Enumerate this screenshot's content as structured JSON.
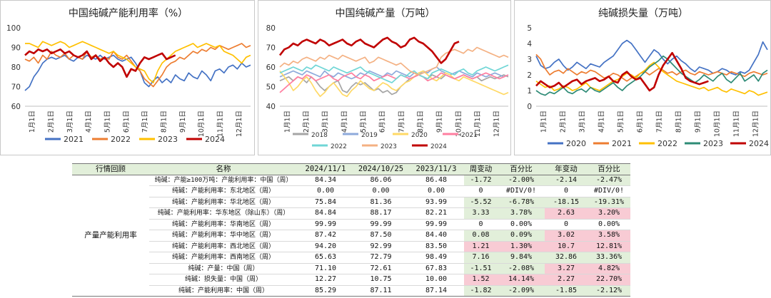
{
  "chart_data": [
    {
      "type": "line",
      "title": "中国纯碱产能利用率（%）",
      "x_tick_labels": [
        "1月1日",
        "2月1日",
        "3月1日",
        "4月1日",
        "5月1日",
        "6月1日",
        "7月1日",
        "8月1日",
        "9月1日",
        "10月1日",
        "11月1日",
        "12月1日"
      ],
      "ylim": [
        60,
        100
      ],
      "yticks": [
        60,
        70,
        80,
        90,
        100
      ],
      "legend_position": "bottom",
      "x_unit": "week",
      "series": [
        {
          "name": "2021",
          "color": "#4472c4",
          "values": [
            68,
            70,
            75,
            78,
            82,
            84,
            85,
            84,
            85,
            86,
            84,
            83,
            85,
            84,
            86,
            85,
            84,
            86,
            84,
            85,
            86,
            84,
            83,
            84,
            85,
            82,
            78,
            72,
            70,
            73,
            75,
            72,
            74,
            72,
            76,
            74,
            73,
            77,
            75,
            74,
            78,
            76,
            73,
            78,
            79,
            77,
            80,
            81,
            79,
            82,
            80,
            81
          ]
        },
        {
          "name": "2022",
          "color": "#ed7d31",
          "values": [
            84,
            83,
            85,
            82,
            86,
            84,
            88,
            86,
            85,
            87,
            84,
            86,
            85,
            84,
            88,
            85,
            86,
            84,
            85,
            84,
            88,
            85,
            84,
            86,
            83,
            80,
            78,
            74,
            72,
            70,
            73,
            76,
            80,
            82,
            83,
            85,
            84,
            86,
            88,
            87,
            89,
            88,
            90,
            89,
            91,
            90,
            89,
            90,
            91,
            92,
            90,
            91
          ]
        },
        {
          "name": "2023",
          "color": "#ffc000",
          "values": [
            92,
            92,
            91,
            90,
            93,
            92,
            91,
            92,
            93,
            92,
            90,
            91,
            92,
            93,
            92,
            91,
            90,
            89,
            88,
            87,
            88,
            86,
            85,
            84,
            82,
            80,
            79,
            78,
            74,
            72,
            78,
            82,
            84,
            86,
            88,
            89,
            90,
            91,
            92,
            90,
            91,
            92,
            91,
            90,
            91,
            88,
            87,
            86,
            84,
            82,
            85,
            86
          ]
        },
        {
          "name": "2024",
          "color": "#c00000",
          "values": [
            86,
            88,
            87,
            89,
            88,
            89,
            87,
            88,
            89,
            87,
            88,
            86,
            85,
            86,
            88,
            84,
            86,
            83,
            85,
            82,
            80,
            82,
            80,
            75,
            79,
            78,
            82,
            85,
            84,
            85,
            86,
            87,
            84,
            85,
            86
          ]
        }
      ]
    },
    {
      "type": "line",
      "title": "中国纯碱产量（万吨）",
      "x_tick_labels": [
        "1月1日",
        "2月1日",
        "3月1日",
        "4月1日",
        "5月1日",
        "6月1日",
        "7月1日",
        "8月1日",
        "9月1日",
        "10月1日",
        "11月1日",
        "12月1日"
      ],
      "ylim": [
        40,
        80
      ],
      "yticks": [
        40,
        50,
        60,
        70,
        80
      ],
      "legend_position": "bottom",
      "x_unit": "week",
      "series": [
        {
          "name": "2018",
          "color": "#a5a5a5",
          "values": [
            53,
            54,
            55,
            53,
            55,
            54,
            52,
            55,
            53,
            50,
            48,
            50,
            52,
            53,
            48,
            47,
            50,
            52,
            51,
            52,
            50,
            48,
            49,
            47,
            48,
            46,
            47,
            50,
            52,
            54,
            55,
            56,
            55,
            54,
            56,
            55,
            54,
            56,
            55,
            54,
            55,
            56,
            55,
            54,
            55,
            53,
            54,
            55,
            54,
            55,
            56,
            55
          ]
        },
        {
          "name": "2019",
          "color": "#8eaadb",
          "values": [
            55,
            56,
            57,
            58,
            57,
            56,
            58,
            57,
            56,
            55,
            58,
            56,
            55,
            57,
            56,
            55,
            54,
            55,
            57,
            56,
            58,
            57,
            56,
            55,
            57,
            56,
            58,
            57,
            56,
            55,
            57,
            56,
            58,
            57,
            59,
            60,
            58,
            57,
            56,
            57,
            58,
            57,
            56,
            55,
            57,
            56,
            55,
            56,
            57,
            56,
            55,
            56
          ]
        },
        {
          "name": "2020",
          "color": "#ffd966",
          "values": [
            58,
            55,
            52,
            48,
            50,
            53,
            55,
            52,
            48,
            45,
            47,
            50,
            52,
            49,
            46,
            45,
            48,
            50,
            53,
            51,
            49,
            48,
            50,
            52,
            51,
            49,
            48,
            50,
            52,
            53,
            55,
            57,
            58,
            56,
            54,
            53,
            55,
            57,
            56,
            54,
            53,
            55,
            54,
            53,
            52,
            51,
            50,
            49,
            48,
            47,
            46,
            47
          ]
        },
        {
          "name": "2021",
          "color": "#ff7fa0",
          "values": [
            47,
            49,
            51,
            53,
            55,
            54,
            56,
            55,
            53,
            54,
            55,
            56,
            54,
            53,
            55,
            56,
            57,
            55,
            54,
            56,
            55,
            53,
            54,
            55,
            56,
            55,
            54,
            56,
            55,
            54,
            55,
            56,
            55,
            53,
            54,
            55,
            57,
            56,
            55,
            54,
            55,
            56,
            55,
            54,
            55,
            56,
            57,
            56,
            55,
            54,
            55,
            56
          ]
        },
        {
          "name": "2022",
          "color": "#70d6d6",
          "values": [
            57,
            58,
            59,
            60,
            59,
            58,
            60,
            59,
            61,
            60,
            59,
            58,
            60,
            59,
            58,
            57,
            58,
            59,
            60,
            58,
            57,
            56,
            55,
            54,
            53,
            52,
            54,
            56,
            55,
            57,
            58,
            56,
            55,
            54,
            57,
            58,
            59,
            58,
            57,
            56,
            58,
            59,
            57,
            56,
            58,
            59,
            60,
            59,
            58,
            59,
            60,
            61
          ]
        },
        {
          "name": "2023",
          "color": "#f4b183",
          "values": [
            60,
            62,
            61,
            63,
            62,
            64,
            65,
            64,
            63,
            65,
            64,
            66,
            65,
            64,
            66,
            65,
            64,
            63,
            64,
            65,
            62,
            63,
            65,
            64,
            63,
            62,
            61,
            62,
            60,
            58,
            57,
            56,
            57,
            58,
            59,
            60,
            65,
            67,
            68,
            69,
            68,
            67,
            69,
            68,
            70,
            69,
            68,
            67,
            66,
            65,
            66,
            65
          ]
        },
        {
          "name": "2024",
          "color": "#c00000",
          "values": [
            66,
            69,
            70,
            72,
            71,
            73,
            74,
            73,
            72,
            74,
            73,
            71,
            72,
            73,
            74,
            72,
            71,
            73,
            74,
            72,
            71,
            70,
            72,
            74,
            75,
            73,
            72,
            70,
            71,
            74,
            75,
            73,
            72,
            70,
            68,
            65,
            62,
            64,
            68,
            72,
            73
          ]
        }
      ]
    },
    {
      "type": "line",
      "title": "纯碱损失量（万吨）",
      "x_tick_labels": [
        "1月1日",
        "2月1日",
        "3月1日",
        "4月1日",
        "5月1日",
        "6月1日",
        "7月1日",
        "8月1日",
        "9月1日",
        "10月1日",
        "11月1日",
        "12月1日"
      ],
      "ylim": [
        0,
        5
      ],
      "yticks": [
        0,
        1,
        2,
        3,
        4,
        5
      ],
      "legend_position": "bottom",
      "x_unit": "week",
      "series": [
        {
          "name": "2020",
          "color": "#4472c4",
          "values": [
            3.2,
            2.6,
            2.4,
            2.5,
            2.8,
            3.0,
            2.6,
            2.3,
            2.5,
            2.8,
            2.6,
            2.4,
            2.7,
            2.6,
            2.5,
            2.8,
            3.0,
            3.2,
            3.6,
            4.0,
            4.2,
            4.0,
            3.6,
            3.2,
            2.8,
            3.2,
            3.6,
            3.4,
            3.0,
            2.7,
            3.0,
            3.2,
            2.9,
            2.7,
            2.4,
            2.2,
            2.5,
            2.4,
            2.3,
            2.1,
            2.2,
            2.4,
            2.3,
            2.1,
            2.0,
            2.2,
            2.1,
            2.3,
            2.8,
            3.3,
            4.1,
            3.6
          ]
        },
        {
          "name": "2021",
          "color": "#ed7d31",
          "values": [
            3.3,
            3.0,
            2.4,
            2.0,
            2.2,
            2.3,
            2.1,
            2.4,
            2.2,
            2.0,
            2.2,
            2.1,
            2.3,
            2.2,
            2.0,
            1.8,
            1.9,
            2.1,
            2.0,
            1.8,
            1.6,
            1.8,
            1.9,
            2.1,
            2.2,
            2.0,
            2.2,
            2.4,
            2.3,
            2.1,
            2.2,
            2.0,
            2.2,
            2.3,
            2.1,
            2.0,
            2.2,
            2.1,
            2.0,
            2.1,
            2.2,
            2.1,
            2.0,
            2.2,
            2.1,
            2.0,
            1.9,
            2.1,
            2.2,
            2.1,
            2.0,
            2.1
          ]
        },
        {
          "name": "2022",
          "color": "#ffc000",
          "values": [
            1.6,
            1.4,
            1.2,
            1.3,
            1.0,
            1.1,
            1.3,
            1.2,
            1.0,
            1.1,
            1.3,
            1.5,
            1.2,
            1.1,
            1.0,
            1.2,
            1.4,
            1.6,
            1.7,
            1.9,
            2.1,
            2.0,
            1.8,
            2.1,
            2.3,
            2.6,
            2.8,
            2.5,
            2.2,
            2.0,
            1.8,
            1.6,
            1.5,
            1.4,
            1.3,
            1.2,
            1.1,
            1.2,
            1.0,
            1.1,
            1.2,
            1.0,
            0.9,
            1.1,
            1.0,
            0.9,
            0.8,
            1.0,
            0.9,
            0.7,
            0.8,
            0.9
          ]
        },
        {
          "name": "2023",
          "color": "#2e8b76",
          "values": [
            1.0,
            0.8,
            0.7,
            0.9,
            0.8,
            1.0,
            1.2,
            0.9,
            0.8,
            1.0,
            1.1,
            0.9,
            1.2,
            1.0,
            0.9,
            1.1,
            1.3,
            1.5,
            1.2,
            1.0,
            1.3,
            1.5,
            1.7,
            1.9,
            2.2,
            2.5,
            2.7,
            2.9,
            3.2,
            3.0,
            2.7,
            2.4,
            2.1,
            1.9,
            1.7,
            1.5,
            1.7,
            2.0,
            1.8,
            1.6,
            1.9,
            2.1,
            1.7,
            1.5,
            1.8,
            2.1,
            1.6,
            1.8,
            2.0,
            1.6,
            2.1,
            2.3
          ]
        },
        {
          "name": "2024",
          "color": "#c00000",
          "values": [
            1.3,
            1.6,
            1.4,
            1.2,
            1.3,
            1.5,
            1.2,
            1.4,
            1.6,
            1.7,
            1.4,
            1.6,
            1.7,
            1.8,
            1.6,
            1.7,
            1.9,
            1.6,
            1.5,
            2.0,
            2.2,
            1.9,
            1.7,
            1.8,
            1.4,
            1.0,
            1.2,
            2.0,
            2.6,
            3.0,
            3.4,
            2.9,
            2.4,
            1.8,
            1.6,
            1.5,
            1.4,
            1.5,
            1.6
          ]
        }
      ]
    }
  ],
  "table": {
    "headers": [
      "行情回顾",
      "名称",
      "2024/11/1",
      "2024/10/25",
      "2023/11/3",
      "周变动",
      "百分比",
      "年变动",
      "百分比"
    ],
    "section_label": "产量产能利用率",
    "rows": [
      {
        "name": "纯碱：产能≥100万吨：产能利用率：中国（周）",
        "v1": "84.34",
        "v2": "86.06",
        "v3": "86.48",
        "wk": "-1.72",
        "wkp": "-2.00%",
        "yr": "-2.14",
        "yrp": "-2.47%",
        "c": [
          "g",
          "g",
          "g",
          "g"
        ]
      },
      {
        "name": "纯碱：产能利用率：东北地区（周）",
        "v1": "0.00",
        "v2": "0.00",
        "v3": "0.00",
        "wk": "0",
        "wkp": "#DIV/0!",
        "yr": "0",
        "yrp": "#DIV/0!",
        "c": [
          "",
          "",
          "",
          ""
        ]
      },
      {
        "name": "纯碱：产能利用率：华北地区（周）",
        "v1": "75.84",
        "v2": "81.36",
        "v3": "93.99",
        "wk": "-5.52",
        "wkp": "-6.78%",
        "yr": "-18.15",
        "yrp": "-19.31%",
        "c": [
          "g",
          "g",
          "g",
          "g"
        ]
      },
      {
        "name": "纯碱：产能利用率：华东地区（除山东）（周）",
        "v1": "84.84",
        "v2": "88.17",
        "v3": "82.21",
        "wk": "3.33",
        "wkp": "3.78%",
        "yr": "2.63",
        "yrp": "3.20%",
        "c": [
          "g",
          "g",
          "r",
          "r"
        ]
      },
      {
        "name": "纯碱：产能利用率：华南地区（周）",
        "v1": "99.99",
        "v2": "99.99",
        "v3": "99.99",
        "wk": "0",
        "wkp": "0.00%",
        "yr": "0",
        "yrp": "0.00%",
        "c": [
          "",
          "",
          "",
          ""
        ]
      },
      {
        "name": "纯碱：产能利用率：华中地区（周）",
        "v1": "87.42",
        "v2": "87.50",
        "v3": "84.40",
        "wk": "0.08",
        "wkp": "0.09%",
        "yr": "3.02",
        "yrp": "3.58%",
        "c": [
          "g",
          "g",
          "r",
          "r"
        ]
      },
      {
        "name": "纯碱：产能利用率：西北地区（周）",
        "v1": "94.20",
        "v2": "92.99",
        "v3": "83.50",
        "wk": "1.21",
        "wkp": "1.30%",
        "yr": "10.7",
        "yrp": "12.81%",
        "c": [
          "r",
          "r",
          "r",
          "r"
        ]
      },
      {
        "name": "纯碱：产能利用率：西南地区（周）",
        "v1": "65.63",
        "v2": "72.79",
        "v3": "98.49",
        "wk": "7.16",
        "wkp": "9.84%",
        "yr": "32.86",
        "yrp": "33.36%",
        "c": [
          "g",
          "g",
          "g",
          "g"
        ]
      },
      {
        "name": "纯碱：产量：中国（周）",
        "v1": "71.10",
        "v2": "72.61",
        "v3": "67.83",
        "wk": "-1.51",
        "wkp": "-2.08%",
        "yr": "3.27",
        "yrp": "4.82%",
        "c": [
          "g",
          "g",
          "r",
          "r"
        ]
      },
      {
        "name": "纯碱：损失量：中国（周）",
        "v1": "12.27",
        "v2": "10.75",
        "v3": "10.00",
        "wk": "1.52",
        "wkp": "14.14%",
        "yr": "2.27",
        "yrp": "22.70%",
        "c": [
          "r",
          "r",
          "r",
          "r"
        ]
      },
      {
        "name": "纯碱：产能利用率：中国（周）",
        "v1": "85.29",
        "v2": "87.11",
        "v3": "87.14",
        "wk": "-1.82",
        "wkp": "-2.09%",
        "yr": "-1.85",
        "yrp": "-2.12%",
        "c": [
          "g",
          "g",
          "g",
          "g"
        ]
      }
    ]
  }
}
